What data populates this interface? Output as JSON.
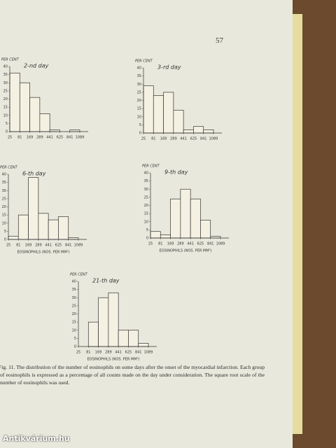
{
  "page_number": "57",
  "chart_data": [
    {
      "type": "histogram",
      "title": "2-nd day",
      "ylabel": "PER CENT",
      "bins": [
        25,
        81,
        169,
        289,
        441,
        625,
        841,
        1089
      ],
      "values": [
        36,
        30,
        21,
        11,
        1,
        0,
        1
      ],
      "xscale": "sqrt",
      "xlim": [
        25,
        1089
      ],
      "xticks": [
        25,
        81,
        169,
        289,
        441,
        625,
        841,
        1089
      ],
      "ylim": [
        0,
        40
      ],
      "yticks": [
        0,
        5,
        10,
        15,
        20,
        25,
        30,
        35,
        40
      ],
      "color": "#f4f1e2"
    },
    {
      "type": "histogram",
      "title": "3-rd day",
      "ylabel": "PER CENT",
      "bins": [
        25,
        81,
        169,
        289,
        441,
        625,
        841,
        1089
      ],
      "values": [
        29,
        23,
        25,
        14,
        2,
        4,
        2
      ],
      "xscale": "sqrt",
      "xlim": [
        25,
        1089
      ],
      "xticks": [
        25,
        81,
        169,
        289,
        441,
        625,
        841,
        1089
      ],
      "ylim": [
        0,
        40
      ],
      "yticks": [
        0,
        5,
        10,
        15,
        20,
        25,
        30,
        35,
        40
      ],
      "color": "#f4f1e2"
    },
    {
      "type": "histogram",
      "title": "6-th day",
      "ylabel": "PER CENT",
      "xlabel": "EOSINOPHILS (NOS. PER MM³)",
      "bins": [
        25,
        81,
        169,
        289,
        441,
        625,
        841,
        1089
      ],
      "values": [
        2,
        15,
        38,
        16,
        12,
        14,
        1
      ],
      "xscale": "sqrt",
      "xlim": [
        25,
        1089
      ],
      "xticks": [
        25,
        81,
        169,
        289,
        441,
        625,
        841,
        1089
      ],
      "ylim": [
        0,
        40
      ],
      "yticks": [
        0,
        5,
        10,
        15,
        20,
        25,
        30,
        35,
        40
      ],
      "color": "#f4f1e2"
    },
    {
      "type": "histogram",
      "title": "9-th day",
      "ylabel": "PER CENT",
      "xlabel": "EOSINOPHILS (NOS. PER MM³)",
      "bins": [
        25,
        81,
        169,
        289,
        441,
        625,
        841,
        1089
      ],
      "values": [
        4,
        2,
        24,
        30,
        24,
        11,
        1
      ],
      "xscale": "sqrt",
      "xlim": [
        25,
        1089
      ],
      "xticks": [
        25,
        81,
        169,
        289,
        441,
        625,
        841,
        1089
      ],
      "ylim": [
        0,
        40
      ],
      "yticks": [
        0,
        5,
        10,
        15,
        20,
        25,
        30,
        35,
        40
      ],
      "color": "#f4f1e2"
    },
    {
      "type": "histogram",
      "title": "21-th day",
      "ylabel": "PER CENT",
      "xlabel": "EOSINOPHILS (NOS. PER MM³)",
      "bins": [
        25,
        81,
        169,
        289,
        441,
        625,
        841,
        1089
      ],
      "values": [
        0,
        15,
        30,
        33,
        10,
        10,
        2
      ],
      "xscale": "sqrt",
      "xlim": [
        25,
        1089
      ],
      "xticks": [
        25,
        81,
        169,
        289,
        441,
        625,
        841,
        1089
      ],
      "ylim": [
        0,
        40
      ],
      "yticks": [
        0,
        5,
        10,
        15,
        20,
        25,
        30,
        35,
        40
      ],
      "color": "#f4f1e2"
    }
  ],
  "caption": "Fig. 11. The distribution of the number of eosinophils on some days after the onset of the myocardial infarction. Each group of eosinophils is expressed as a percentage of all counts made on the day under consideration. The square root scale of the number of eosinophils was used.",
  "watermark": "Antikvárium.hu"
}
